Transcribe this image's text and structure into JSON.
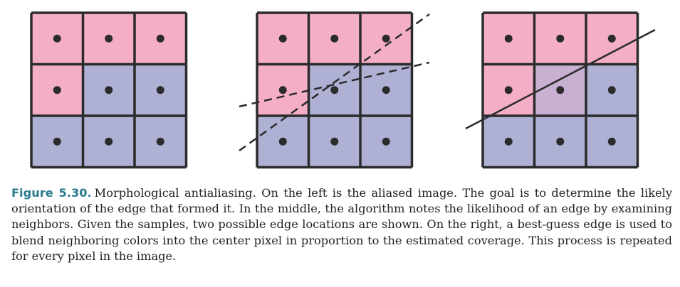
{
  "colors": {
    "pink": "#f4aec8",
    "blue": "#aeb0d4",
    "blend": "#c7b0d2",
    "grid": "#2b2b2b",
    "dot": "#2b2b2b",
    "caption_label": "#2a7a8c"
  },
  "panels": [
    {
      "name": "aliased-image",
      "cells": [
        "pink",
        "pink",
        "pink",
        "pink",
        "blue",
        "blue",
        "blue",
        "blue",
        "blue"
      ],
      "edges": []
    },
    {
      "name": "possible-edges",
      "cells": [
        "pink",
        "pink",
        "pink",
        "pink",
        "blue",
        "blue",
        "blue",
        "blue",
        "blue"
      ],
      "edges": [
        "dashed",
        "dashed"
      ]
    },
    {
      "name": "best-guess-edge",
      "cells": [
        "pink",
        "pink",
        "pink",
        "pink",
        "blend",
        "blue",
        "blue",
        "blue",
        "blue"
      ],
      "edges": [
        "solid"
      ]
    }
  ],
  "caption": {
    "label": "Figure 5.30.",
    "text": "Morphological antialiasing. On the left is the aliased image. The goal is to determine the likely orientation of the edge that formed it. In the middle, the algorithm notes the likelihood of an edge by examining neighbors. Given the samples, two possible edge locations are shown. On the right, a best-guess edge is used to blend neighboring colors into the center pixel in proportion to the estimated coverage. This process is repeated for every pixel in the image."
  }
}
